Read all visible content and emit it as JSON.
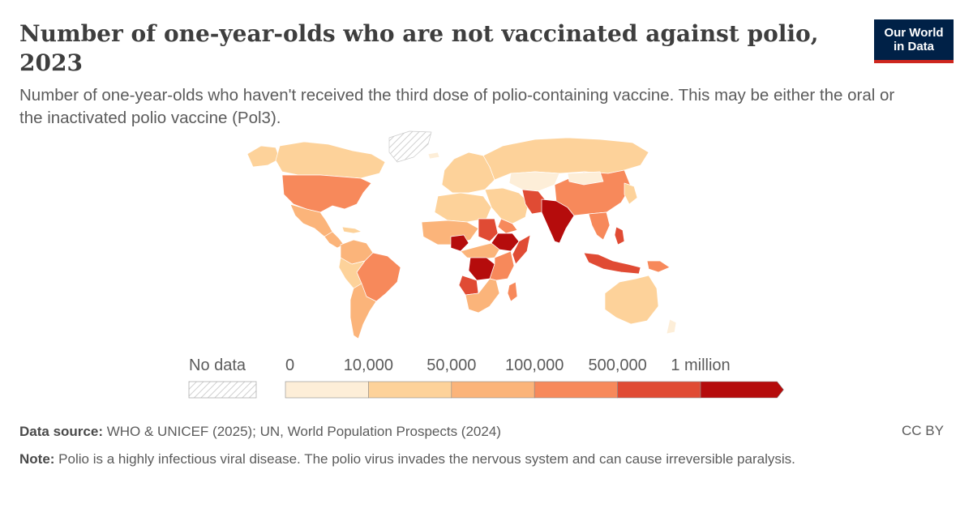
{
  "header": {
    "title": "Number of one-year-olds who are not vaccinated against polio, 2023",
    "subtitle": "Number of one-year-olds who haven't received the third dose of polio-containing vaccine. This may be either the oral or the inactivated polio vaccine (Pol3).",
    "logo_line1": "Our World",
    "logo_line2": "in Data"
  },
  "legend": {
    "no_data_label": "No data",
    "bins": [
      {
        "label": "0",
        "color": "#fdeed8"
      },
      {
        "label": "10,000",
        "color": "#fdd29a"
      },
      {
        "label": "50,000",
        "color": "#fbb47a"
      },
      {
        "label": "100,000",
        "color": "#f7895b"
      },
      {
        "label": "500,000",
        "color": "#e04b34"
      },
      {
        "label": "1 million",
        "color": "#b50c0c"
      }
    ]
  },
  "map": {
    "colors": {
      "c0": "#fdeed8",
      "c1": "#fdd29a",
      "c2": "#fbb47a",
      "c3": "#f7895b",
      "c4": "#e04b34",
      "c5": "#b50c0c"
    }
  },
  "footer": {
    "source_label": "Data source:",
    "source_text": " WHO & UNICEF (2025); UN, World Population Prospects (2024)",
    "note_label": "Note:",
    "note_text": " Polio is a highly infectious viral disease. The polio virus invades the nervous system and can cause irreversible paralysis.",
    "license": "CC BY"
  }
}
